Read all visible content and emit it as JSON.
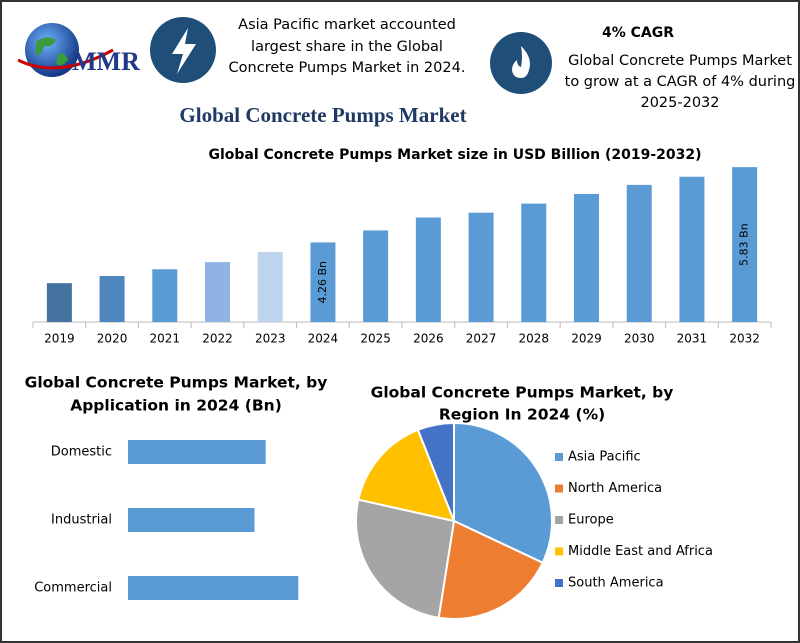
{
  "header": {
    "logo": "MMR",
    "left_note": [
      "Asia Pacific market accounted",
      "largest share in the Global",
      "Concrete Pumps Market in 2024."
    ],
    "cagr_title": "4% CAGR",
    "right_note": [
      "Global Concrete Pumps Market",
      "to grow at a CAGR of 4% during",
      "2025-2032"
    ],
    "title": "Global Concrete Pumps Market"
  },
  "chart_data": [
    {
      "type": "bar",
      "title": "Global Concrete Pumps Market size in USD Billion (2019-2032)",
      "categories": [
        "2019",
        "2020",
        "2021",
        "2022",
        "2023",
        "2024",
        "2025",
        "2026",
        "2027",
        "2028",
        "2029",
        "2030",
        "2031",
        "2032"
      ],
      "values": [
        3.41,
        3.56,
        3.7,
        3.85,
        4.06,
        4.26,
        4.51,
        4.78,
        4.88,
        5.07,
        5.27,
        5.46,
        5.63,
        5.83
      ],
      "value_labels": [
        null,
        null,
        null,
        null,
        null,
        "4.26 Bn",
        null,
        null,
        null,
        null,
        null,
        null,
        null,
        "5.83 Bn"
      ],
      "colors": [
        "#44739f",
        "#4f86c0",
        "#5b9bd5",
        "#8fb4e3",
        "#bdd3ee",
        "#5b9bd5",
        "#5b9bd5",
        "#5b9bd5",
        "#5b9bd5",
        "#5b9bd5",
        "#5b9bd5",
        "#5b9bd5",
        "#5b9bd5",
        "#5b9bd5"
      ],
      "ylim": [
        2.6,
        6.0
      ]
    },
    {
      "type": "hbar",
      "title": [
        "Global Concrete Pumps Market, by",
        "Application in 2024 (Bn)"
      ],
      "categories": [
        "Domestic",
        "Industrial",
        "Commercial"
      ],
      "values": [
        1.35,
        1.24,
        1.67
      ],
      "color": "#5b9bd5",
      "xlim": [
        0,
        2.5
      ]
    },
    {
      "type": "pie",
      "title": [
        "Global Concrete Pumps Market, by",
        "Region In 2024 (%)"
      ],
      "categories": [
        "Asia Pacific",
        "North America",
        "Europe",
        "Middle East and Africa",
        "South America"
      ],
      "values": [
        32,
        20.5,
        26,
        15.5,
        6
      ],
      "colors": [
        "#5b9bd5",
        "#ed7d31",
        "#a5a5a5",
        "#ffc000",
        "#4472c4"
      ],
      "legend": "right"
    }
  ]
}
